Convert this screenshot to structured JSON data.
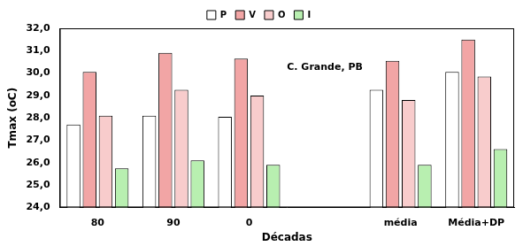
{
  "chart_data": {
    "type": "bar",
    "categories": [
      "80",
      "90",
      "0",
      null,
      "média",
      "Média+DP"
    ],
    "x_label": "Décadas",
    "y_label": "Tmax (oC)",
    "annotations": [
      {
        "text": "C. Grande, PB"
      }
    ],
    "series": [
      {
        "name": "P",
        "color": "#ffffff",
        "values": [
          27.7,
          28.1,
          28.05,
          null,
          29.25,
          30.05
        ]
      },
      {
        "name": "V",
        "color": "#f2a5a5",
        "values": [
          30.05,
          30.9,
          30.65,
          null,
          30.55,
          31.5
        ]
      },
      {
        "name": "O",
        "color": "#f8cccc",
        "values": [
          28.1,
          29.25,
          29.0,
          null,
          28.8,
          29.85
        ]
      },
      {
        "name": "I",
        "color": "#b8efb0",
        "values": [
          25.75,
          26.1,
          25.9,
          null,
          25.9,
          26.6
        ]
      }
    ],
    "ylim": [
      24,
      32
    ],
    "yticks": [
      {
        "value": 24,
        "label": "24,0"
      },
      {
        "value": 25,
        "label": "25,0"
      },
      {
        "value": 26,
        "label": "26,0"
      },
      {
        "value": 27,
        "label": "27,0"
      },
      {
        "value": 28,
        "label": "28,0"
      },
      {
        "value": 29,
        "label": "29,0"
      },
      {
        "value": 30,
        "label": "30,0"
      },
      {
        "value": 31,
        "label": "31,0"
      },
      {
        "value": 32,
        "label": "32,0"
      }
    ],
    "grid": false,
    "legend": "top"
  }
}
